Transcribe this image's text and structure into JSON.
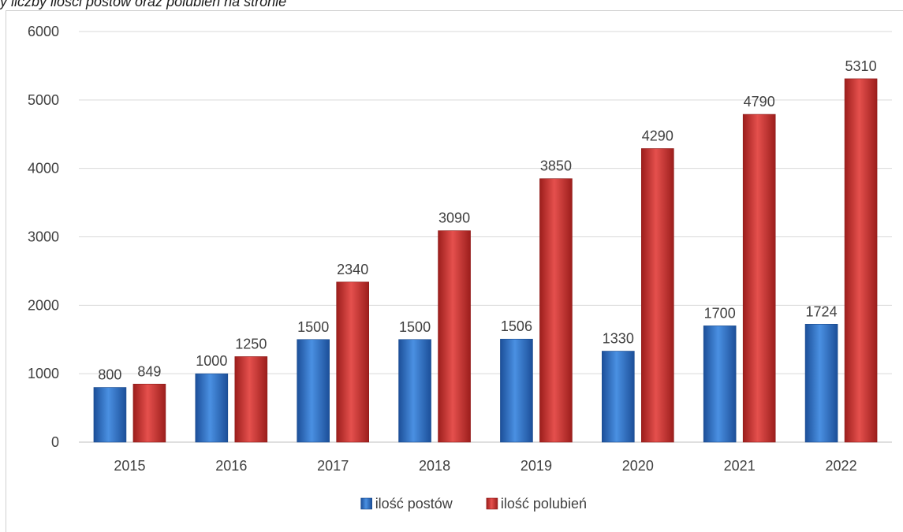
{
  "caption": "y liczby ilości postów oraz polubień na stronie",
  "chart_data": {
    "type": "bar",
    "categories": [
      "2015",
      "2016",
      "2017",
      "2018",
      "2019",
      "2020",
      "2021",
      "2022"
    ],
    "series": [
      {
        "name": "ilość postów",
        "color": "#2e75c7",
        "values": [
          800,
          1000,
          1500,
          1500,
          1506,
          1330,
          1700,
          1724
        ]
      },
      {
        "name": "ilość polubień",
        "color": "#d0312f",
        "values": [
          849,
          1250,
          2340,
          3090,
          3850,
          4290,
          4790,
          5310
        ]
      }
    ],
    "yticks": [
      "0",
      "1000",
      "2000",
      "3000",
      "4000",
      "5000",
      "6000"
    ],
    "ylim": [
      0,
      6000
    ],
    "grid": true,
    "legend_position": "bottom",
    "data_labels": true
  }
}
